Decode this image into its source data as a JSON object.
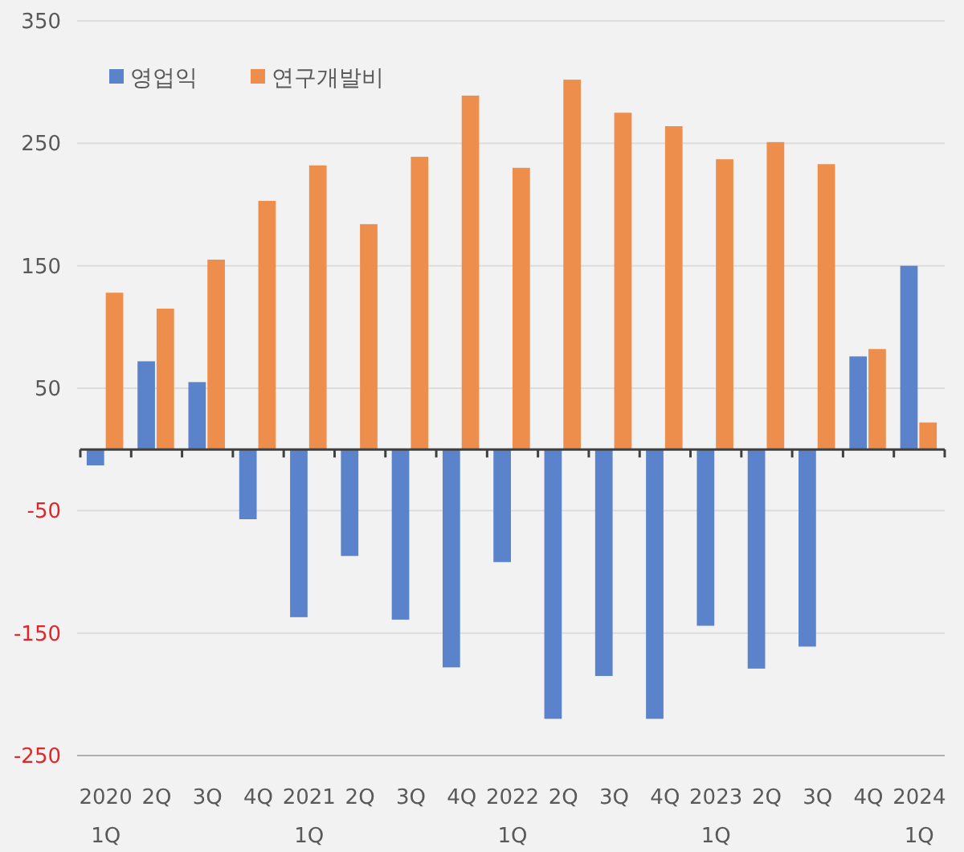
{
  "chart_data": {
    "type": "bar",
    "categories": [
      "2020 1Q",
      "2Q",
      "3Q",
      "4Q",
      "2021 1Q",
      "2Q",
      "3Q",
      "4Q",
      "2022 1Q",
      "2Q",
      "3Q",
      "4Q",
      "2023 1Q",
      "2Q",
      "3Q",
      "4Q",
      "2024 1Q"
    ],
    "series": [
      {
        "name": "영업익",
        "color": "#5b83cc",
        "values": [
          -13,
          72,
          55,
          -57,
          -137,
          -87,
          -139,
          -178,
          -92,
          -220,
          -185,
          -220,
          -144,
          -179,
          -161,
          76,
          150
        ]
      },
      {
        "name": "연구개발비",
        "color": "#ee8e4c",
        "values": [
          128,
          115,
          155,
          203,
          232,
          184,
          239,
          289,
          230,
          302,
          275,
          264,
          237,
          251,
          233,
          82,
          22
        ]
      }
    ],
    "ylim": [
      -250,
      350
    ],
    "yticks": [
      -250,
      -150,
      -50,
      50,
      150,
      250,
      350
    ],
    "grid": "y",
    "legend": "top left"
  }
}
